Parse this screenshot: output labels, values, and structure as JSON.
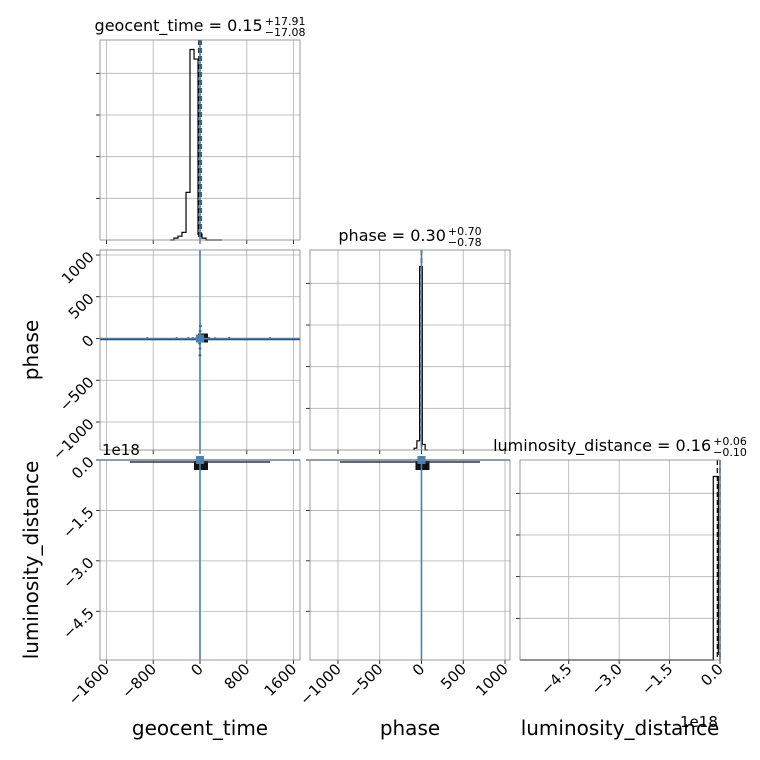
{
  "chart_data": {
    "type": "corner",
    "parameters": [
      "geocent_time",
      "phase",
      "luminosity_distance"
    ],
    "titles": [
      {
        "param": "geocent_time",
        "label": "geocent_time = 0.15",
        "plus": "+17.91",
        "minus": "−17.08"
      },
      {
        "param": "phase",
        "label": "phase = 0.30",
        "plus": "+0.70",
        "minus": "−0.78"
      },
      {
        "param": "luminosity_distance",
        "label": "luminosity_distance = 0.16",
        "plus": "+0.06",
        "minus": "−0.10"
      }
    ],
    "ranges": {
      "geocent_time": [
        -1710,
        1710
      ],
      "phase": [
        -1335,
        1060
      ],
      "luminosity_distance": [
        -5.95,
        0
      ]
    },
    "ticks": {
      "geocent_time": [
        {
          "v": -1600,
          "label": "−1600"
        },
        {
          "v": -800,
          "label": "−800"
        },
        {
          "v": 0,
          "label": "0"
        },
        {
          "v": 800,
          "label": "800"
        },
        {
          "v": 1600,
          "label": "1600"
        }
      ],
      "phase": [
        {
          "v": -1000,
          "label": "−1000"
        },
        {
          "v": -500,
          "label": "−500"
        },
        {
          "v": 0,
          "label": "0"
        },
        {
          "v": 500,
          "label": "500"
        },
        {
          "v": 1000,
          "label": "1000"
        }
      ],
      "luminosity_distance": [
        {
          "v": -4.5,
          "label": "−4.5"
        },
        {
          "v": -3.0,
          "label": "−3.0"
        },
        {
          "v": -1.5,
          "label": "−1.5"
        },
        {
          "v": 0.0,
          "label": "0.0"
        }
      ]
    },
    "offset_label": "1e18",
    "truths": {
      "geocent_time": 0,
      "phase": 0,
      "luminosity_distance": 0
    },
    "histograms": {
      "geocent_time": {
        "edges": [
          -514,
          -445,
          -376,
          -308,
          -239,
          -171,
          -102,
          -34,
          34,
          102,
          171,
          239,
          308,
          376
        ],
        "counts": [
          0,
          1,
          2,
          4,
          25,
          100,
          95,
          3,
          1,
          0,
          0,
          0,
          0
        ],
        "ymax": 105
      },
      "phase": {
        "edges": [
          -88,
          -55,
          -22,
          11,
          44,
          77
        ],
        "counts": [
          1,
          5,
          100,
          3,
          0
        ],
        "ymax": 109
      },
      "luminosity_distance": {
        "edges": [
          -5.95,
          -0.2,
          -0.05,
          0
        ],
        "counts": [
          0,
          100,
          3
        ],
        "ymax": 109
      }
    },
    "quantiles_dashed": {
      "geocent_time": [
        -20,
        0,
        18
      ],
      "phase": [
        -2,
        0,
        2
      ],
      "luminosity_distance": [
        -0.08,
        0,
        0
      ]
    },
    "scatter_points": {
      "x_geocent_time_y_phase": [
        [
          0,
          0
        ],
        [
          -5,
          5
        ],
        [
          8,
          -4
        ],
        [
          12,
          3
        ],
        [
          -10,
          -6
        ],
        [
          20,
          2
        ],
        [
          -30,
          4
        ],
        [
          40,
          -3
        ],
        [
          -60,
          1
        ],
        [
          80,
          -2
        ],
        [
          -120,
          0
        ],
        [
          150,
          1
        ],
        [
          -200,
          -1
        ],
        [
          260,
          0
        ],
        [
          -400,
          0
        ],
        [
          500,
          1
        ],
        [
          -900,
          0
        ],
        [
          1200,
          0
        ],
        [
          2,
          40
        ],
        [
          -3,
          -60
        ],
        [
          1,
          90
        ],
        [
          0,
          -120
        ],
        [
          4,
          150
        ],
        [
          -1,
          -200
        ]
      ]
    },
    "grid": true
  }
}
